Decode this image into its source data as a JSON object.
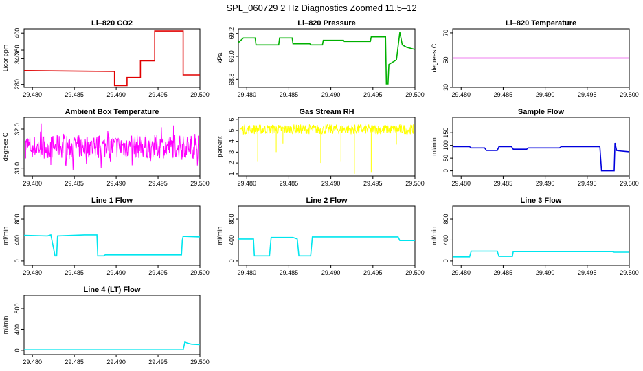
{
  "main_title": "SPL_060729  2 Hz Diagnostics Zoomed 11.5–12",
  "chart_data": [
    {
      "type": "line",
      "title": "Li–820 CO2",
      "ylabel": "Licor ppm",
      "color": "#e00000",
      "xlim": [
        29.479,
        29.5
      ],
      "xticks": [
        "29.480",
        "29.485",
        "29.490",
        "29.495",
        "29.500"
      ],
      "ylim": [
        273,
        410
      ],
      "yticks": [
        "280",
        "340",
        "360",
        "400"
      ],
      "ytick_values": [
        280,
        340,
        360,
        400
      ],
      "series": [
        {
          "x": [
            29.479,
            29.4898,
            29.4898,
            29.4913,
            29.4913,
            29.4929,
            29.4929,
            29.4946,
            29.4946,
            29.498,
            29.498,
            29.5
          ],
          "y": [
            312,
            310,
            277,
            277,
            296,
            296,
            335,
            335,
            405,
            405,
            302,
            302
          ]
        }
      ]
    },
    {
      "type": "line",
      "title": "Li–820 Pressure",
      "ylabel": "kPa",
      "color": "#00b000",
      "xlim": [
        29.479,
        29.5
      ],
      "xticks": [
        "29.480",
        "29.485",
        "29.490",
        "29.495",
        "29.500"
      ],
      "ylim": [
        68.73,
        69.24
      ],
      "yticks": [
        "68.8",
        "69.0",
        "69.2"
      ],
      "ytick_values": [
        68.8,
        69.0,
        69.2
      ],
      "series": [
        {
          "x": [
            29.479,
            29.4796,
            29.481,
            29.4811,
            29.4838,
            29.4839,
            29.4854,
            29.4855,
            29.4875,
            29.4876,
            29.489,
            29.4891,
            29.4915,
            29.4916,
            29.4947,
            29.4948,
            29.4965,
            29.4966,
            29.4968,
            29.4969,
            29.4978,
            29.4982,
            29.4985,
            29.499,
            29.5
          ],
          "y": [
            69.12,
            69.16,
            69.16,
            69.1,
            69.1,
            69.16,
            69.16,
            69.11,
            69.11,
            69.1,
            69.1,
            69.14,
            69.14,
            69.13,
            69.13,
            69.17,
            69.17,
            68.76,
            68.76,
            68.93,
            68.97,
            69.21,
            69.1,
            69.08,
            69.06
          ]
        }
      ]
    },
    {
      "type": "line",
      "title": "Li–820 Temperature",
      "ylabel": "degrees C",
      "color": "#e000e0",
      "xlim": [
        29.479,
        29.5
      ],
      "xticks": [
        "29.480",
        "29.485",
        "29.490",
        "29.495",
        "29.500"
      ],
      "ylim": [
        30,
        73
      ],
      "yticks": [
        "30",
        "50",
        "70"
      ],
      "ytick_values": [
        30,
        50,
        70
      ],
      "series": [
        {
          "x": [
            29.479,
            29.5
          ],
          "y": [
            51.5,
            51.5
          ]
        }
      ]
    },
    {
      "type": "line",
      "title": "Ambient Box Temperature",
      "ylabel": "degrees C",
      "color": "#ff00ff",
      "xlim": [
        29.479,
        29.5
      ],
      "xticks": [
        "29.480",
        "29.485",
        "29.490",
        "29.495",
        "29.500"
      ],
      "ylim": [
        30.8,
        32.3
      ],
      "yticks": [
        "31.0",
        "32.0"
      ],
      "ytick_values": [
        31.0,
        32.0
      ],
      "noise": {
        "base": 31.55,
        "amp": 0.3,
        "spike_amp": 0.6
      },
      "series": [
        {
          "x": [
            29.479,
            29.5
          ],
          "y": [
            31.55,
            31.55
          ]
        }
      ]
    },
    {
      "type": "line",
      "title": "Gas Stream RH",
      "ylabel": "percent",
      "color": "#ffff00",
      "xlim": [
        29.479,
        29.5
      ],
      "xticks": [
        "29.480",
        "29.485",
        "29.490",
        "29.495",
        "29.500"
      ],
      "ylim": [
        0.8,
        6.2
      ],
      "yticks": [
        "1",
        "2",
        "3",
        "4",
        "5",
        "6"
      ],
      "ytick_values": [
        1,
        2,
        3,
        4,
        5,
        6
      ],
      "noise": {
        "base": 5.1,
        "amp": 0.45,
        "dips": [
          [
            29.4813,
            2.1
          ],
          [
            29.4835,
            3.0
          ],
          [
            29.4888,
            2.0
          ],
          [
            29.4912,
            2.1
          ],
          [
            29.4928,
            1.0
          ],
          [
            29.4948,
            1.1
          ],
          [
            29.4843,
            3.8
          ],
          [
            29.4978,
            3.7
          ]
        ]
      },
      "series": [
        {
          "x": [
            29.479,
            29.5
          ],
          "y": [
            5.1,
            5.1
          ]
        }
      ]
    },
    {
      "type": "line",
      "title": "Sample Flow",
      "ylabel": "ml/min",
      "color": "#0000dd",
      "xlim": [
        29.479,
        29.5
      ],
      "xticks": [
        "29.480",
        "29.485",
        "29.490",
        "29.495",
        "29.500"
      ],
      "ylim": [
        -20,
        210
      ],
      "yticks": [
        "0",
        "50",
        "100",
        "150"
      ],
      "ytick_values": [
        0,
        50,
        100,
        150
      ],
      "series": [
        {
          "x": [
            29.479,
            29.481,
            29.4812,
            29.4828,
            29.483,
            29.4843,
            29.4845,
            29.486,
            29.4862,
            29.4878,
            29.488,
            29.4917,
            29.4919,
            29.4965,
            29.4967,
            29.4982,
            29.4983,
            29.4985,
            29.499,
            29.5
          ],
          "y": [
            95,
            95,
            90,
            90,
            80,
            80,
            95,
            95,
            85,
            85,
            90,
            90,
            95,
            95,
            0,
            0,
            110,
            80,
            78,
            75
          ]
        }
      ]
    },
    {
      "type": "line",
      "title": "Line 1 Flow",
      "ylabel": "ml/min",
      "color": "#00e5ee",
      "xlim": [
        29.479,
        29.5
      ],
      "xticks": [
        "29.480",
        "29.485",
        "29.490",
        "29.495",
        "29.500"
      ],
      "ylim": [
        -80,
        1050
      ],
      "yticks": [
        "0",
        "400",
        "800"
      ],
      "ytick_values": [
        0,
        400,
        800
      ],
      "series": [
        {
          "x": [
            29.479,
            29.4818,
            29.4822,
            29.4827,
            29.4829,
            29.483,
            29.4862,
            29.4877,
            29.4878,
            29.4885,
            29.4887,
            29.4978,
            29.4979,
            29.498,
            29.5
          ],
          "y": [
            490,
            480,
            500,
            100,
            100,
            480,
            500,
            500,
            100,
            100,
            120,
            120,
            400,
            470,
            460
          ]
        }
      ]
    },
    {
      "type": "line",
      "title": "Line 2 Flow",
      "ylabel": "ml/min",
      "color": "#00e5ee",
      "xlim": [
        29.479,
        29.5
      ],
      "xticks": [
        "29.480",
        "29.485",
        "29.490",
        "29.495",
        "29.500"
      ],
      "ylim": [
        -80,
        1050
      ],
      "yticks": [
        "0",
        "400",
        "800"
      ],
      "ytick_values": [
        0,
        400,
        800
      ],
      "series": [
        {
          "x": [
            29.479,
            29.4808,
            29.4809,
            29.4827,
            29.4829,
            29.4855,
            29.486,
            29.4862,
            29.4876,
            29.4878,
            29.498,
            29.4982,
            29.5
          ],
          "y": [
            420,
            420,
            100,
            100,
            450,
            450,
            420,
            100,
            100,
            460,
            460,
            390,
            390
          ]
        }
      ]
    },
    {
      "type": "line",
      "title": "Line 3 Flow",
      "ylabel": "ml/min",
      "color": "#00e5ee",
      "xlim": [
        29.479,
        29.5
      ],
      "xticks": [
        "29.480",
        "29.485",
        "29.490",
        "29.495",
        "29.500"
      ],
      "ylim": [
        -80,
        1050
      ],
      "yticks": [
        "0",
        "400",
        "800"
      ],
      "ytick_values": [
        0,
        400,
        800
      ],
      "series": [
        {
          "x": [
            29.479,
            29.481,
            29.4812,
            29.4843,
            29.4845,
            29.4861,
            29.4862,
            29.498,
            29.4982,
            29.5
          ],
          "y": [
            80,
            80,
            190,
            190,
            90,
            90,
            180,
            180,
            170,
            170
          ]
        }
      ]
    },
    {
      "type": "line",
      "title": "Line 4 (LT) Flow",
      "ylabel": "ml/min",
      "color": "#00e5ee",
      "xlim": [
        29.479,
        29.5
      ],
      "xticks": [
        "29.480",
        "29.485",
        "29.490",
        "29.495",
        "29.500"
      ],
      "ylim": [
        -80,
        1050
      ],
      "yticks": [
        "0",
        "400",
        "800"
      ],
      "ytick_values": [
        0,
        400,
        800
      ],
      "series": [
        {
          "x": [
            29.479,
            29.498,
            29.4982,
            29.4985,
            29.499,
            29.5
          ],
          "y": [
            10,
            10,
            160,
            140,
            120,
            110
          ]
        }
      ]
    }
  ]
}
